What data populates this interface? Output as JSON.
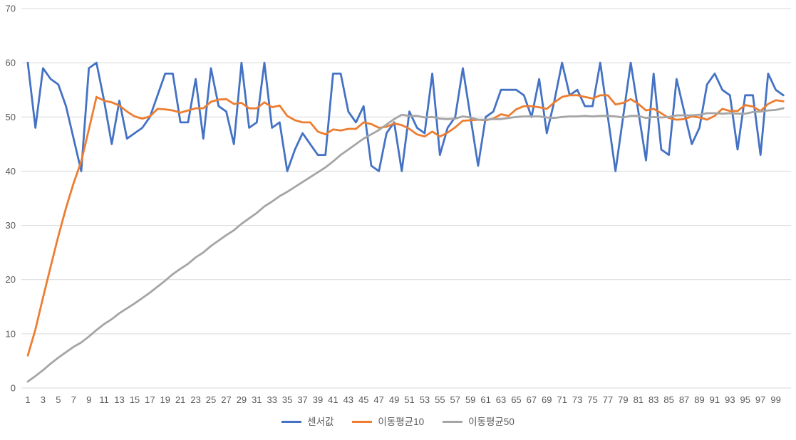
{
  "page": {
    "background": "#FFFFFF"
  },
  "chart_data": {
    "type": "line",
    "title": "",
    "xlabel": "",
    "ylabel": "",
    "x_range": [
      1,
      100
    ],
    "x_tick_labels": [
      1,
      3,
      5,
      7,
      9,
      11,
      13,
      15,
      17,
      19,
      21,
      23,
      25,
      27,
      29,
      31,
      33,
      35,
      37,
      39,
      41,
      43,
      45,
      47,
      49,
      51,
      53,
      55,
      57,
      59,
      61,
      63,
      65,
      67,
      69,
      71,
      73,
      75,
      77,
      79,
      81,
      83,
      85,
      87,
      89,
      91,
      93,
      95,
      97,
      99
    ],
    "y_axis": {
      "min": 0,
      "max": 70,
      "ticks": [
        0,
        10,
        20,
        30,
        40,
        50,
        60,
        70
      ]
    },
    "grid": "horizontal",
    "gridline_color": "#D9D9D9",
    "label_color": "#595959",
    "legend_position": "bottom",
    "series": [
      {
        "name": "센서값",
        "color": "#4472C4",
        "values": [
          60,
          48,
          59,
          57,
          56,
          52,
          46,
          40,
          59,
          60,
          53,
          45,
          53,
          46,
          47,
          48,
          50,
          54,
          58,
          58,
          49,
          49,
          57,
          46,
          59,
          52,
          51,
          45,
          60,
          48,
          49,
          60,
          48,
          49,
          40,
          44,
          47,
          45,
          43,
          43,
          58,
          58,
          51,
          49,
          52,
          41,
          40,
          47,
          49,
          40,
          51,
          48,
          47,
          58,
          43,
          48,
          50,
          59,
          50,
          41,
          50,
          51,
          55,
          55,
          55,
          54,
          50,
          57,
          47,
          53,
          60,
          54,
          55,
          52,
          52,
          60,
          50,
          40,
          50,
          60,
          51,
          42,
          58,
          44,
          43,
          57,
          51,
          45,
          48,
          56,
          58,
          55,
          54,
          44,
          54,
          54,
          43,
          58,
          55,
          54
        ]
      },
      {
        "name": "이동평균10",
        "color": "#ED7D31",
        "note": "moving average of last 10 samples (partial sums divided by 10 at start)",
        "values": [
          6.0,
          10.8,
          16.7,
          22.4,
          28.0,
          33.2,
          37.8,
          41.8,
          47.7,
          53.7,
          53.0,
          52.7,
          52.1,
          51.0,
          50.1,
          49.7,
          50.1,
          51.5,
          51.4,
          51.2,
          50.8,
          51.2,
          51.6,
          51.6,
          52.8,
          53.2,
          53.3,
          52.4,
          52.6,
          51.6,
          51.6,
          52.7,
          51.8,
          52.1,
          50.2,
          49.4,
          49.0,
          49.0,
          47.3,
          46.8,
          47.7,
          47.5,
          47.8,
          47.8,
          49.0,
          48.7,
          48.0,
          48.2,
          48.8,
          48.5,
          47.8,
          46.8,
          46.4,
          47.3,
          46.4,
          47.1,
          48.1,
          49.3,
          49.4,
          49.5,
          49.4,
          49.7,
          50.5,
          50.2,
          51.4,
          52.0,
          52.0,
          51.8,
          51.5,
          52.7,
          53.7,
          54.0,
          54.0,
          53.7,
          53.4,
          54.0,
          54.0,
          52.3,
          52.6,
          53.3,
          52.4,
          51.2,
          51.5,
          50.7,
          49.8,
          49.5,
          49.6,
          50.1,
          49.9,
          49.5,
          50.2,
          51.5,
          51.1,
          51.1,
          52.2,
          51.9,
          51.1,
          52.4,
          53.1,
          52.9
        ]
      },
      {
        "name": "이동평균50",
        "color": "#A5A5A5",
        "note": "moving average of last 50 samples (partial sums divided by 50 at start)",
        "values": [
          1.2,
          2.2,
          3.3,
          4.5,
          5.6,
          6.6,
          7.6,
          8.4,
          9.5,
          10.7,
          11.8,
          12.7,
          13.8,
          14.7,
          15.6,
          16.6,
          17.6,
          18.7,
          19.8,
          21.0,
          22.0,
          22.9,
          24.1,
          25.0,
          26.2,
          27.2,
          28.2,
          29.1,
          30.3,
          31.3,
          32.3,
          33.5,
          34.4,
          35.4,
          36.2,
          37.1,
          38.0,
          38.9,
          39.8,
          40.7,
          41.8,
          43.0,
          44.0,
          45.0,
          46.0,
          46.8,
          47.6,
          48.6,
          49.6,
          50.4,
          50.2,
          50.2,
          49.9,
          50.0,
          49.7,
          49.6,
          49.7,
          50.1,
          49.9,
          49.5,
          49.5,
          49.6,
          49.6,
          49.8,
          50.0,
          50.1,
          50.1,
          50.1,
          49.9,
          49.8,
          50.0,
          50.1,
          50.1,
          50.2,
          50.1,
          50.2,
          50.2,
          50.1,
          49.9,
          50.2,
          50.2,
          49.8,
          50.0,
          49.9,
          50.0,
          50.3,
          50.3,
          50.3,
          50.4,
          50.7,
          50.7,
          50.6,
          50.7,
          50.6,
          50.6,
          50.9,
          51.0,
          51.2,
          51.3,
          51.6
        ]
      }
    ]
  },
  "legend": {
    "items": [
      {
        "label": "센서값"
      },
      {
        "label": "이동평균10"
      },
      {
        "label": "이동평균50"
      }
    ]
  }
}
